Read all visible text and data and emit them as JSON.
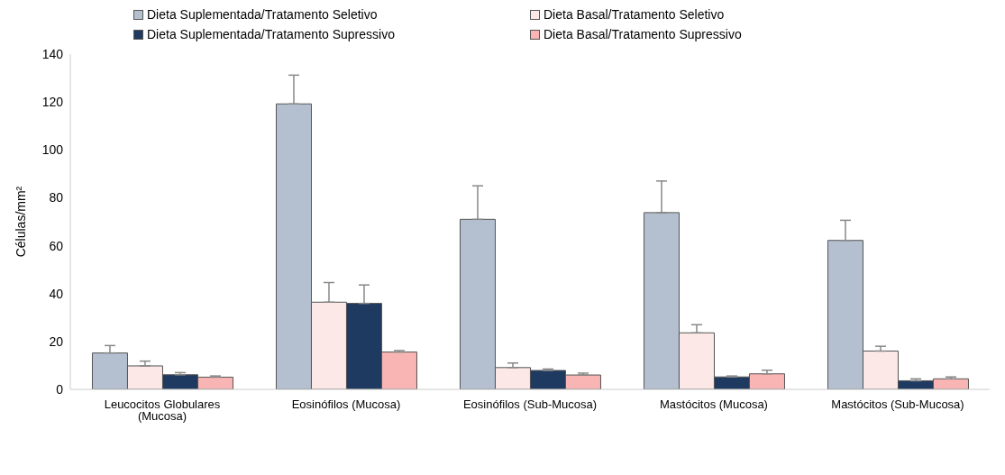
{
  "chart_data": {
    "type": "bar",
    "ylabel": "Células/mm²",
    "categories": [
      "Leucocitos Globulares (Mucosa)",
      "Eosinófilos (Mucosa)",
      "Eosinófilos (Sub-Mucosa)",
      "Mastócitos (Mucosa)",
      "Mastócitos (Sub-Mucosa)"
    ],
    "series": [
      {
        "name": "Dieta Suplementada/Tratamento Seletivo",
        "color": "#b4c0d0",
        "values": [
          15.2,
          119.2,
          71,
          73.8,
          62.2
        ],
        "errors": [
          [
            15.2,
            18.3
          ],
          [
            119.2,
            131.2
          ],
          [
            71,
            85
          ],
          [
            73.8,
            87
          ],
          [
            62.2,
            70.6
          ]
        ]
      },
      {
        "name": "Dieta Basal/Tratamento Seletivo",
        "color": "#fde8e8",
        "values": [
          9.8,
          36.4,
          9.1,
          23.6,
          16
        ],
        "errors": [
          [
            9.8,
            11.8
          ],
          [
            36.4,
            44.6
          ],
          [
            9.1,
            11
          ],
          [
            23.6,
            27
          ],
          [
            16,
            18
          ]
        ]
      },
      {
        "name": "Dieta Suplementada/Tratamento Supressivo",
        "color": "#1f3a60",
        "values": [
          6.1,
          35.9,
          7.9,
          5.2,
          3.6
        ],
        "errors": [
          [
            6.1,
            7
          ],
          [
            35.9,
            43.6
          ],
          [
            7.9,
            8.5
          ],
          [
            5.2,
            5.6
          ],
          [
            3.6,
            4.4
          ]
        ]
      },
      {
        "name": "Dieta Basal/Tratamento Supressivo",
        "color": "#f9b4b4",
        "values": [
          5.1,
          15.6,
          6,
          6.5,
          4.4
        ],
        "errors": [
          [
            5.1,
            5.6
          ],
          [
            15.6,
            16.2
          ],
          [
            6,
            6.8
          ],
          [
            6.5,
            8
          ],
          [
            4.4,
            5.2
          ]
        ]
      }
    ],
    "ylim": [
      0,
      140
    ],
    "yticks": [
      0,
      20,
      40,
      60,
      80,
      100,
      120,
      140
    ],
    "grid": false,
    "legend": "top"
  }
}
